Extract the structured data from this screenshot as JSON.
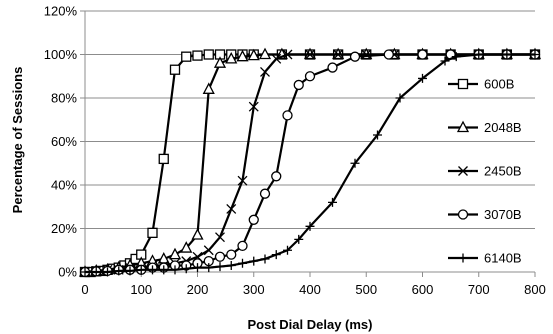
{
  "chart_data": {
    "type": "line",
    "title": "",
    "xlabel": "Post Dial Delay (ms)",
    "ylabel": "Percentage of Sessions",
    "xlim": [
      0,
      800
    ],
    "ylim": [
      0,
      120
    ],
    "x_ticks": [
      "0",
      "100",
      "200",
      "300",
      "400",
      "500",
      "600",
      "700",
      "800"
    ],
    "y_ticks": [
      "0%",
      "20%",
      "40%",
      "60%",
      "80%",
      "100%",
      "120%"
    ],
    "grid": "horizontal",
    "legend_position": "right",
    "series": [
      {
        "name": "600B",
        "marker": "square",
        "points": [
          [
            0,
            0
          ],
          [
            10,
            0
          ],
          [
            20,
            0.3
          ],
          [
            30,
            0.5
          ],
          [
            40,
            1
          ],
          [
            50,
            1.5
          ],
          [
            60,
            2
          ],
          [
            70,
            3
          ],
          [
            80,
            4
          ],
          [
            90,
            6
          ],
          [
            100,
            8
          ],
          [
            120,
            18
          ],
          [
            140,
            52
          ],
          [
            160,
            93
          ],
          [
            180,
            99
          ],
          [
            200,
            99.5
          ],
          [
            220,
            100
          ],
          [
            240,
            100
          ],
          [
            260,
            100
          ],
          [
            280,
            100
          ],
          [
            300,
            100
          ],
          [
            350,
            100
          ],
          [
            400,
            100
          ],
          [
            450,
            100
          ],
          [
            500,
            100
          ],
          [
            550,
            100
          ],
          [
            600,
            100
          ],
          [
            650,
            100
          ],
          [
            700,
            100
          ],
          [
            750,
            100
          ],
          [
            800,
            100
          ]
        ]
      },
      {
        "name": "2048B",
        "marker": "triangle",
        "points": [
          [
            0,
            0
          ],
          [
            20,
            0.5
          ],
          [
            40,
            1
          ],
          [
            60,
            2
          ],
          [
            80,
            3
          ],
          [
            100,
            4
          ],
          [
            120,
            5
          ],
          [
            140,
            6
          ],
          [
            160,
            8
          ],
          [
            180,
            11
          ],
          [
            200,
            17
          ],
          [
            220,
            84
          ],
          [
            240,
            96
          ],
          [
            260,
            98
          ],
          [
            280,
            99
          ],
          [
            300,
            99.5
          ],
          [
            320,
            100
          ],
          [
            350,
            100
          ],
          [
            400,
            100
          ],
          [
            450,
            100
          ],
          [
            500,
            100
          ],
          [
            550,
            100
          ],
          [
            600,
            100
          ],
          [
            650,
            100
          ],
          [
            700,
            100
          ],
          [
            750,
            100
          ],
          [
            800,
            100
          ]
        ]
      },
      {
        "name": "2450B",
        "marker": "x",
        "points": [
          [
            0,
            0
          ],
          [
            20,
            0.5
          ],
          [
            40,
            1
          ],
          [
            60,
            1
          ],
          [
            80,
            2
          ],
          [
            100,
            2
          ],
          [
            120,
            3
          ],
          [
            140,
            3
          ],
          [
            160,
            4
          ],
          [
            180,
            5
          ],
          [
            200,
            7
          ],
          [
            220,
            10
          ],
          [
            240,
            16
          ],
          [
            260,
            29
          ],
          [
            280,
            42
          ],
          [
            300,
            76
          ],
          [
            320,
            92
          ],
          [
            340,
            98
          ],
          [
            360,
            100
          ],
          [
            400,
            100
          ],
          [
            450,
            100
          ],
          [
            500,
            100
          ],
          [
            550,
            100
          ],
          [
            600,
            100
          ],
          [
            650,
            100
          ],
          [
            700,
            100
          ],
          [
            750,
            100
          ],
          [
            800,
            100
          ]
        ]
      },
      {
        "name": "3070B",
        "marker": "circle",
        "points": [
          [
            0,
            0
          ],
          [
            20,
            0.3
          ],
          [
            40,
            0.5
          ],
          [
            60,
            1
          ],
          [
            80,
            1
          ],
          [
            100,
            1
          ],
          [
            120,
            2
          ],
          [
            140,
            2
          ],
          [
            160,
            3
          ],
          [
            180,
            3
          ],
          [
            200,
            4
          ],
          [
            220,
            5
          ],
          [
            240,
            7
          ],
          [
            260,
            8
          ],
          [
            280,
            12
          ],
          [
            300,
            24
          ],
          [
            320,
            36
          ],
          [
            340,
            44
          ],
          [
            360,
            72
          ],
          [
            380,
            86
          ],
          [
            400,
            90
          ],
          [
            440,
            94
          ],
          [
            480,
            99
          ],
          [
            540,
            100
          ],
          [
            600,
            100
          ],
          [
            650,
            100
          ],
          [
            700,
            100
          ],
          [
            750,
            100
          ],
          [
            800,
            100
          ]
        ]
      },
      {
        "name": "6140B",
        "marker": "plus",
        "points": [
          [
            0,
            0
          ],
          [
            20,
            0
          ],
          [
            40,
            0
          ],
          [
            60,
            0.5
          ],
          [
            80,
            0.5
          ],
          [
            100,
            1
          ],
          [
            120,
            1
          ],
          [
            140,
            1
          ],
          [
            160,
            1
          ],
          [
            180,
            1.5
          ],
          [
            200,
            2
          ],
          [
            220,
            2
          ],
          [
            240,
            2.5
          ],
          [
            260,
            3
          ],
          [
            280,
            4
          ],
          [
            300,
            5
          ],
          [
            320,
            6
          ],
          [
            340,
            8
          ],
          [
            360,
            10
          ],
          [
            380,
            15
          ],
          [
            400,
            21
          ],
          [
            440,
            32
          ],
          [
            480,
            50
          ],
          [
            520,
            63
          ],
          [
            560,
            80
          ],
          [
            600,
            89
          ],
          [
            640,
            97
          ],
          [
            660,
            99
          ],
          [
            700,
            100
          ],
          [
            750,
            100
          ],
          [
            800,
            100
          ]
        ]
      }
    ]
  }
}
